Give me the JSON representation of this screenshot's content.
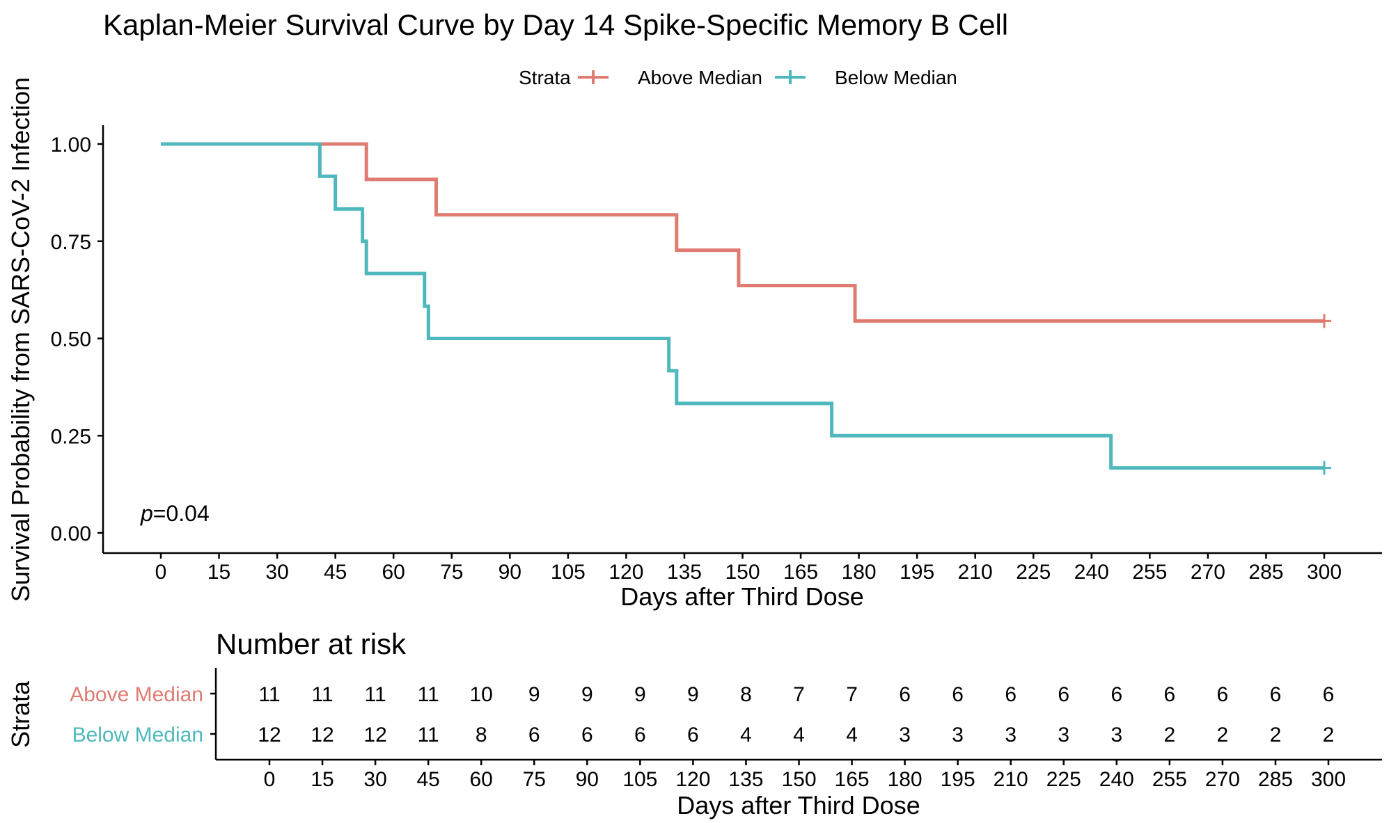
{
  "chart_data": {
    "type": "line",
    "title": "Kaplan-Meier Survival Curve by Day 14 Spike-Specific Memory B Cell",
    "xlabel": "Days after Third Dose",
    "ylabel": "Survival Probability from SARS-CoV-2 Infection",
    "xlim": [
      0,
      300
    ],
    "ylim": [
      0,
      1
    ],
    "x_ticks": [
      0,
      15,
      30,
      45,
      60,
      75,
      90,
      105,
      120,
      135,
      150,
      165,
      180,
      195,
      210,
      225,
      240,
      255,
      270,
      285,
      300
    ],
    "y_ticks": [
      0,
      0.25,
      0.5,
      0.75,
      1.0
    ],
    "y_tick_labels": [
      "0.00",
      "0.25",
      "0.50",
      "0.75",
      "1.00"
    ],
    "legend": {
      "title": "Strata",
      "position": "top"
    },
    "annotation": {
      "prefix": "p",
      "value": "=0.04"
    },
    "series": [
      {
        "name": "Above Median",
        "color": "#e07b71",
        "step": true,
        "points": [
          {
            "x": 0,
            "y": 1.0
          },
          {
            "x": 53,
            "y": 0.909
          },
          {
            "x": 71,
            "y": 0.818
          },
          {
            "x": 133,
            "y": 0.727
          },
          {
            "x": 149,
            "y": 0.636
          },
          {
            "x": 179,
            "y": 0.545
          },
          {
            "x": 300,
            "y": 0.545
          }
        ],
        "censored": [
          {
            "x": 300,
            "y": 0.545
          }
        ]
      },
      {
        "name": "Below Median",
        "color": "#4fb8bd",
        "step": true,
        "points": [
          {
            "x": 0,
            "y": 1.0
          },
          {
            "x": 41,
            "y": 0.917
          },
          {
            "x": 45,
            "y": 0.833
          },
          {
            "x": 52,
            "y": 0.75
          },
          {
            "x": 53,
            "y": 0.667
          },
          {
            "x": 68,
            "y": 0.583
          },
          {
            "x": 69,
            "y": 0.5
          },
          {
            "x": 131,
            "y": 0.417
          },
          {
            "x": 133,
            "y": 0.333
          },
          {
            "x": 173,
            "y": 0.25
          },
          {
            "x": 245,
            "y": 0.167
          },
          {
            "x": 300,
            "y": 0.167
          }
        ],
        "censored": [
          {
            "x": 300,
            "y": 0.167
          }
        ]
      }
    ],
    "risk_table": {
      "title": "Number at risk",
      "ylabel": "Strata",
      "xlabel": "Days after Third Dose",
      "times": [
        0,
        15,
        30,
        45,
        60,
        75,
        90,
        105,
        120,
        135,
        150,
        165,
        180,
        195,
        210,
        225,
        240,
        255,
        270,
        285,
        300
      ],
      "rows": [
        {
          "name": "Above Median",
          "color": "#e07b71",
          "values": [
            11,
            11,
            11,
            11,
            10,
            9,
            9,
            9,
            9,
            8,
            7,
            7,
            6,
            6,
            6,
            6,
            6,
            6,
            6,
            6,
            6
          ]
        },
        {
          "name": "Below Median",
          "color": "#4fb8bd",
          "values": [
            12,
            12,
            12,
            11,
            8,
            6,
            6,
            6,
            6,
            4,
            4,
            4,
            3,
            3,
            3,
            3,
            3,
            2,
            2,
            2,
            2
          ]
        }
      ]
    }
  }
}
